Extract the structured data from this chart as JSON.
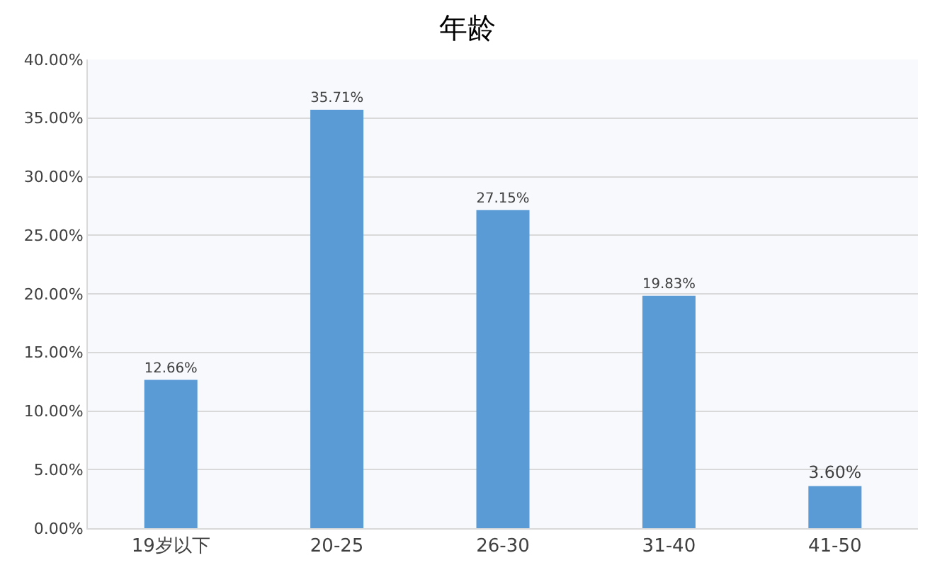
{
  "chart_data": {
    "type": "bar",
    "title": "年龄",
    "categories": [
      "19岁以下",
      "20-25",
      "26-30",
      "31-40",
      "41-50"
    ],
    "values": [
      12.66,
      35.71,
      27.15,
      19.83,
      3.6
    ],
    "value_labels": [
      "12.66%",
      "35.71%",
      "27.15%",
      "19.83%",
      "3.60%"
    ],
    "color": "#5b9bd5",
    "ylim": [
      0,
      40
    ],
    "yticks": [
      {
        "value": 0,
        "label": "0.00%"
      },
      {
        "value": 5,
        "label": "5.00%"
      },
      {
        "value": 10,
        "label": "10.00%"
      },
      {
        "value": 15,
        "label": "15.00%"
      },
      {
        "value": 20,
        "label": "20.00%"
      },
      {
        "value": 25,
        "label": "25.00%"
      },
      {
        "value": 30,
        "label": "30.00%"
      },
      {
        "value": 35,
        "label": "35.00%"
      },
      {
        "value": 40,
        "label": "40.00%"
      }
    ],
    "grid": "y",
    "legend": false
  }
}
